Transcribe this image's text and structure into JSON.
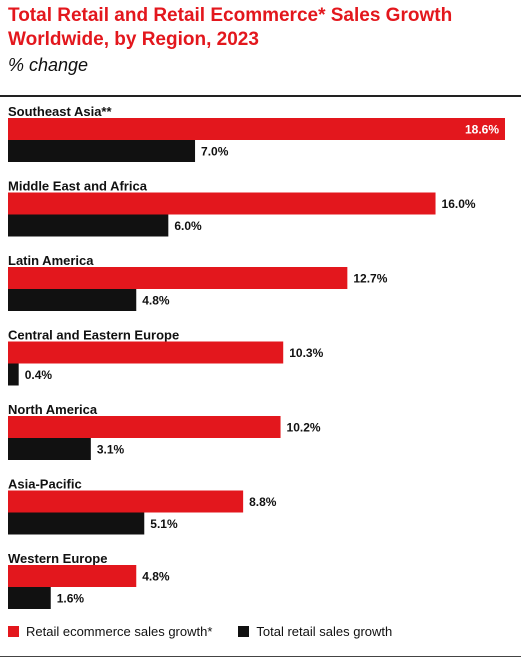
{
  "title": "Total Retail and Retail Ecommerce* Sales Growth Worldwide, by Region, 2023",
  "subtitle": "% change",
  "chart_data": {
    "type": "bar",
    "orientation": "horizontal",
    "categories": [
      "Southeast Asia**",
      "Middle East and Africa",
      "Latin America",
      "Central and Eastern Europe",
      "North America",
      "Asia-Pacific",
      "Western Europe"
    ],
    "series": [
      {
        "name": "Retail ecommerce sales growth*",
        "color": "#e3171d",
        "values": [
          18.6,
          16.0,
          12.7,
          10.3,
          10.2,
          8.8,
          4.8
        ],
        "labels": [
          "18.6%",
          "16.0%",
          "12.7%",
          "10.3%",
          "10.2%",
          "8.8%",
          "4.8%"
        ]
      },
      {
        "name": "Total retail sales growth",
        "color": "#111111",
        "values": [
          7.0,
          6.0,
          4.8,
          0.4,
          3.1,
          5.1,
          1.6
        ],
        "labels": [
          "7.0%",
          "6.0%",
          "4.8%",
          "0.4%",
          "3.1%",
          "5.1%",
          "1.6%"
        ]
      }
    ],
    "xlim": [
      0,
      18.6
    ],
    "unit": "%",
    "grid": false,
    "legend_position": "bottom-left"
  }
}
